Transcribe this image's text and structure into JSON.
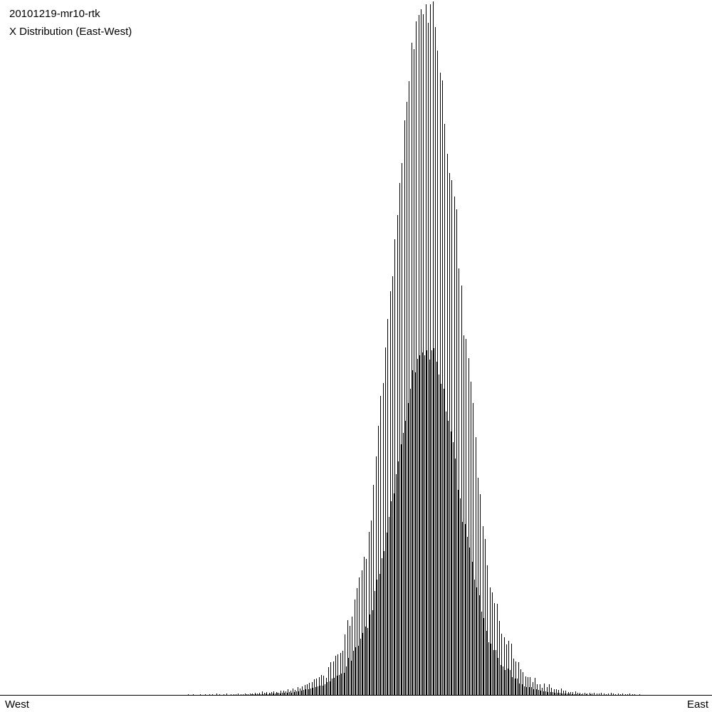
{
  "chart_data": {
    "type": "bar",
    "title": "20101219-mr10-rtk",
    "subtitle": "X Distribution (East-West)",
    "xlabel_left": "West",
    "xlabel_right": "East",
    "ylabel": "",
    "ylim": [
      0,
      976
    ],
    "grid": false,
    "legend": "none",
    "bar_color": "#000000",
    "background": "#ffffff",
    "series": [
      {
        "values": [
          1,
          0,
          1,
          0,
          0,
          1,
          0,
          1,
          0,
          1,
          1,
          0,
          2,
          1,
          0,
          1,
          2,
          0,
          1,
          1,
          1,
          2,
          1,
          1,
          2,
          1,
          2,
          2,
          3,
          2,
          3,
          5,
          3,
          4,
          3,
          4,
          5,
          4,
          3,
          6,
          6,
          5,
          8,
          6,
          9,
          7,
          11,
          9,
          12,
          14,
          15,
          17,
          18,
          22,
          23,
          25,
          28,
          27,
          24,
          39,
          46,
          47,
          55,
          57,
          59,
          62,
          85,
          105,
          97,
          110,
          134,
          150,
          165,
          175,
          194,
          191,
          229,
          245,
          295,
          335,
          378,
          420,
          438,
          488,
          528,
          567,
          588,
          640,
          674,
          719,
          747,
          807,
          833,
          862,
          916,
          907,
          946,
          955,
          963,
          956,
          970,
          944,
          970,
          974,
          938,
          905,
          874,
          863,
          802,
          760,
          733,
          723,
          700,
          682,
          599,
          575,
          505,
          500,
          473,
          440,
          410,
          362,
          305,
          282,
          237,
          219,
          182,
          151,
          144,
          129,
          128,
          104,
          86,
          81,
          71,
          76,
          72,
          51,
          47,
          46,
          36,
          32,
          26,
          25,
          25,
          18,
          24,
          15,
          15,
          10,
          16,
          11,
          15,
          10,
          8,
          8,
          7,
          9,
          6,
          6,
          4,
          4,
          4,
          5,
          3,
          3,
          2,
          3,
          2,
          3,
          2,
          3,
          2,
          2,
          3,
          2,
          1,
          2,
          3,
          2,
          1,
          2,
          1,
          2,
          1,
          1,
          2,
          1,
          1,
          0,
          1
        ]
      },
      {
        "values": [
          0,
          0,
          0,
          0,
          0,
          0,
          0,
          0,
          0,
          0,
          0,
          0,
          0,
          0,
          0,
          0,
          0,
          0,
          0,
          0,
          0,
          0,
          0,
          0,
          1,
          0,
          1,
          1,
          1,
          1,
          1,
          1,
          2,
          1,
          2,
          2,
          2,
          3,
          2,
          3,
          3,
          3,
          4,
          3,
          4,
          5,
          5,
          6,
          7,
          8,
          8,
          9,
          10,
          11,
          12,
          13,
          13,
          15,
          18,
          19,
          23,
          24,
          27,
          28,
          30,
          31,
          40,
          52,
          48,
          62,
          67,
          69,
          79,
          87,
          96,
          94,
          113,
          119,
          146,
          162,
          170,
          192,
          202,
          228,
          250,
          272,
          283,
          310,
          328,
          352,
          368,
          385,
          410,
          430,
          456,
          453,
          472,
          477,
          481,
          477,
          484,
          471,
          484,
          487,
          468,
          450,
          437,
          430,
          398,
          385,
          370,
          355,
          332,
          288,
          276,
          243,
          240,
          222,
          207,
          187,
          162,
          151,
          140,
          117,
          108,
          90,
          74,
          72,
          63,
          63,
          52,
          42,
          40,
          35,
          37,
          35,
          25,
          23,
          23,
          16,
          15,
          12,
          11,
          11,
          11,
          8,
          8,
          7,
          6,
          5,
          5,
          4,
          4,
          4,
          3,
          3,
          3,
          2,
          2,
          2,
          2,
          1,
          1,
          1,
          1,
          1,
          0,
          1,
          0,
          1,
          0,
          0,
          0,
          0,
          0,
          0,
          0,
          0,
          0,
          0,
          0,
          0,
          0,
          0,
          0,
          0,
          0,
          0,
          0,
          0,
          0
        ]
      }
    ]
  }
}
